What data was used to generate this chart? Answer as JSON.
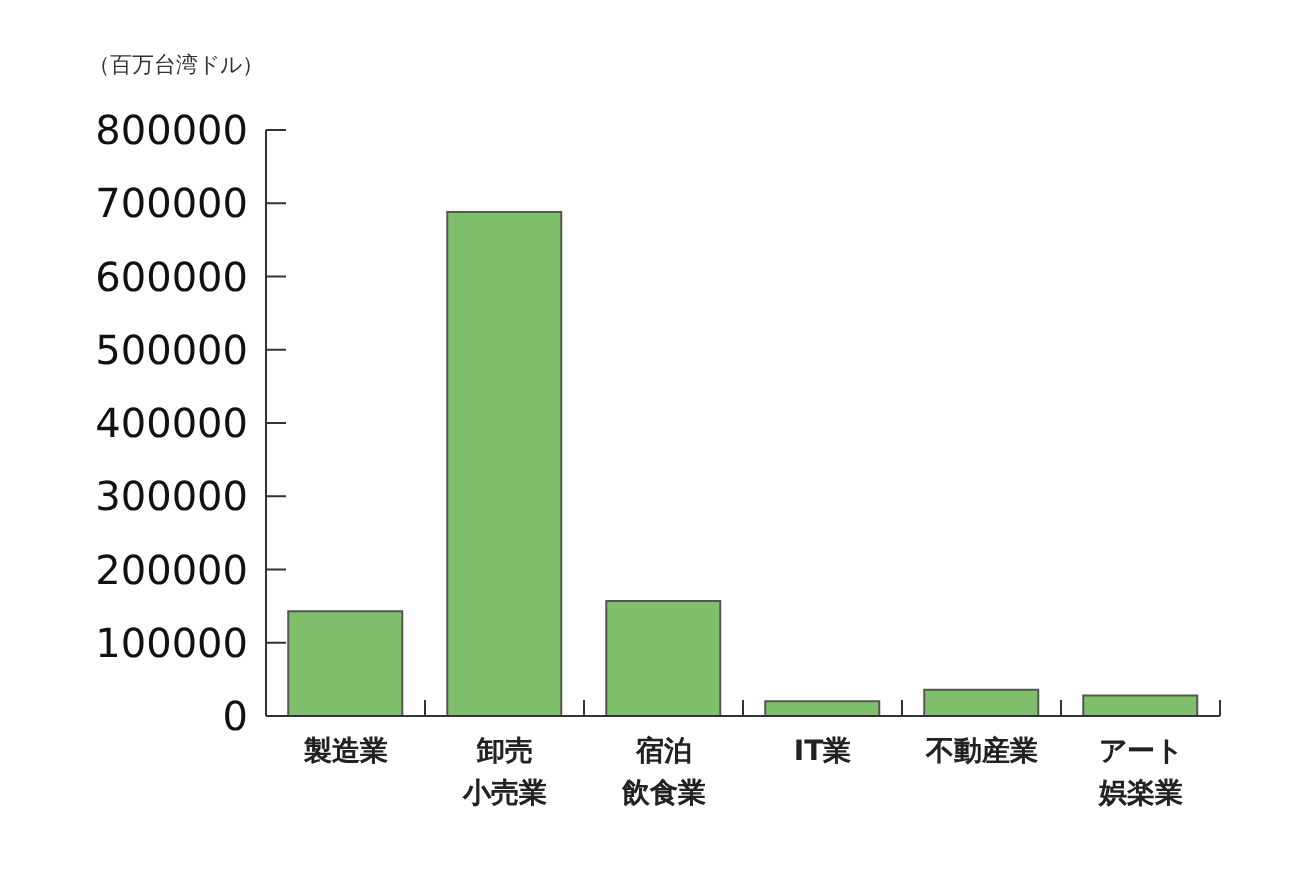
{
  "chart_data": {
    "type": "bar",
    "ylabel": "（百万台湾ドル）",
    "categories": [
      "製造業",
      "卸売小売業",
      "宿泊飲食業",
      "IT業",
      "不動産業",
      "アート娯楽業"
    ],
    "values": [
      143000,
      688000,
      157000,
      20000,
      36000,
      28000
    ],
    "color": "#80bf6b",
    "ylim": [
      0,
      800000
    ],
    "yticks": [
      0,
      100000,
      200000,
      300000,
      400000,
      500000,
      600000,
      700000,
      800000
    ]
  }
}
